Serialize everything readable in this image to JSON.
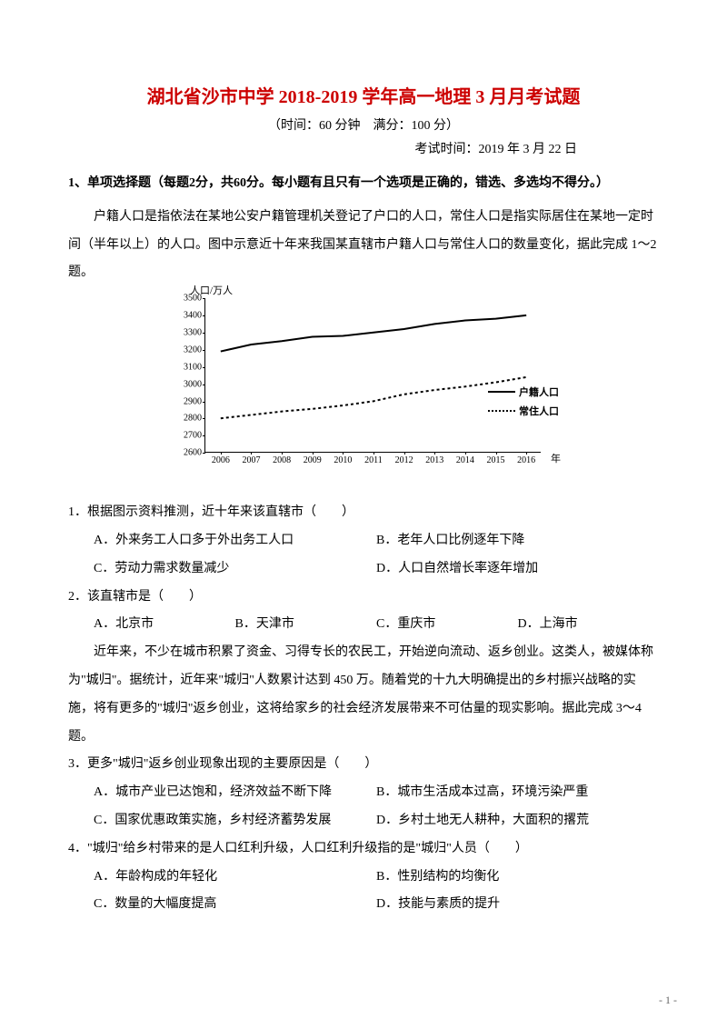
{
  "title": "湖北省沙市中学 2018-2019 学年高一地理 3 月月考试题",
  "subtitle": "（时间：60 分钟　满分：100 分）",
  "examTime": "考试时间：2019 年 3 月 22 日",
  "sectionHeader": "1、单项选择题（每题2分，共60分。每小题有且只有一个选项是正确的，错选、多选均不得分。）",
  "passage1": "户籍人口是指依法在某地公安户籍管理机关登记了户口的人口，常住人口是指实际居住在某地一定时间（半年以上）的人口。图中示意近十年来我国某直辖市户籍人口与常住人口的数量变化，据此完成 1～2 题。",
  "chart": {
    "ylabel": "人口/万人",
    "xlabel": "年",
    "yticks": [
      "2600",
      "2700",
      "2800",
      "2900",
      "3000",
      "3100",
      "3200",
      "3300",
      "3400",
      "3500"
    ],
    "xticks": [
      "2006",
      "2007",
      "2008",
      "2009",
      "2010",
      "2011",
      "2012",
      "2013",
      "2014",
      "2015",
      "2016"
    ],
    "series1": {
      "name": "户籍人口",
      "values": [
        3190,
        3230,
        3250,
        3275,
        3280,
        3300,
        3320,
        3350,
        3370,
        3380,
        3400
      ],
      "dash": "none"
    },
    "series2": {
      "name": "常住人口",
      "values": [
        2800,
        2820,
        2840,
        2855,
        2875,
        2900,
        2940,
        2965,
        2985,
        3010,
        3040
      ],
      "dash": "3 3"
    },
    "ymin": 2600,
    "ymax": 3500
  },
  "q1": {
    "text": "1．根据图示资料推测，近十年来该直辖市（　　）",
    "A": "A．外来务工人口多于外出务工人口",
    "B": "B．老年人口比例逐年下降",
    "C": "C．劳动力需求数量减少",
    "D": "D．人口自然增长率逐年增加"
  },
  "q2": {
    "text": "2．该直辖市是（　　）",
    "A": "A．北京市",
    "B": "B．天津市",
    "C": "C．重庆市",
    "D": "D．上海市"
  },
  "passage2": "近年来，不少在城市积累了资金、习得专长的农民工，开始逆向流动、返乡创业。这类人，被媒体称为\"城归\"。据统计，近年来\"城归\"人数累计达到 450 万。随着党的十九大明确提出的乡村振兴战略的实施，将有更多的\"城归\"返乡创业，这将给家乡的社会经济发展带来不可估量的现实影响。据此完成 3～4 题。",
  "q3": {
    "text": "3．更多\"城归\"返乡创业现象出现的主要原因是（　　）",
    "A": "A．城市产业已达饱和，经济效益不断下降",
    "B": "B．城市生活成本过高，环境污染严重",
    "C": "C．国家优惠政策实施，乡村经济蓄势发展",
    "D": "D．乡村土地无人耕种，大面积的撂荒"
  },
  "q4": {
    "text": "4．\"城归\"给乡村带来的是人口红利升级，人口红利升级指的是\"城归\"人员（　　）",
    "A": "A．年龄构成的年轻化",
    "B": "B．性别结构的均衡化",
    "C": "C．数量的大幅度提高",
    "D": "D．技能与素质的提升"
  },
  "pageNumber": "- 1 -"
}
